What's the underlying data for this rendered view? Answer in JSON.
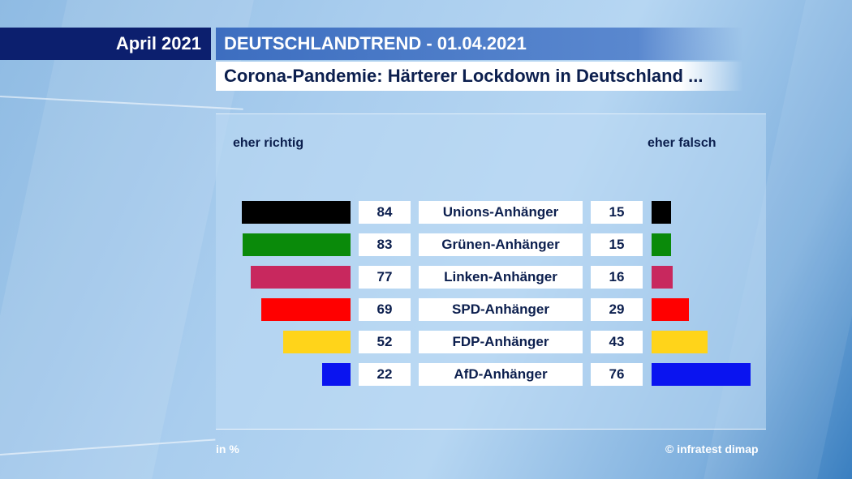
{
  "header": {
    "date": "April 2021",
    "trend": "DEUTSCHLANDTREND - 01.04.2021",
    "subtitle": "Corona-Pandemie: Härterer Lockdown in Deutschland ..."
  },
  "footer": {
    "unit": "in %",
    "source": "© infratest dimap"
  },
  "chart_data": {
    "type": "bar",
    "categories": [
      "Unions-Anhänger",
      "Grünen-Anhänger",
      "Linken-Anhänger",
      "SPD-Anhänger",
      "FDP-Anhänger",
      "AfD-Anhänger"
    ],
    "series": [
      {
        "name": "eher richtig",
        "values": [
          84,
          83,
          77,
          69,
          52,
          22
        ]
      },
      {
        "name": "eher falsch",
        "values": [
          15,
          15,
          16,
          29,
          43,
          76
        ]
      }
    ],
    "colors": [
      "#000000",
      "#0a8a0a",
      "#c8285e",
      "#ff0000",
      "#ffd41a",
      "#0a14f0"
    ],
    "unit": "in %"
  }
}
